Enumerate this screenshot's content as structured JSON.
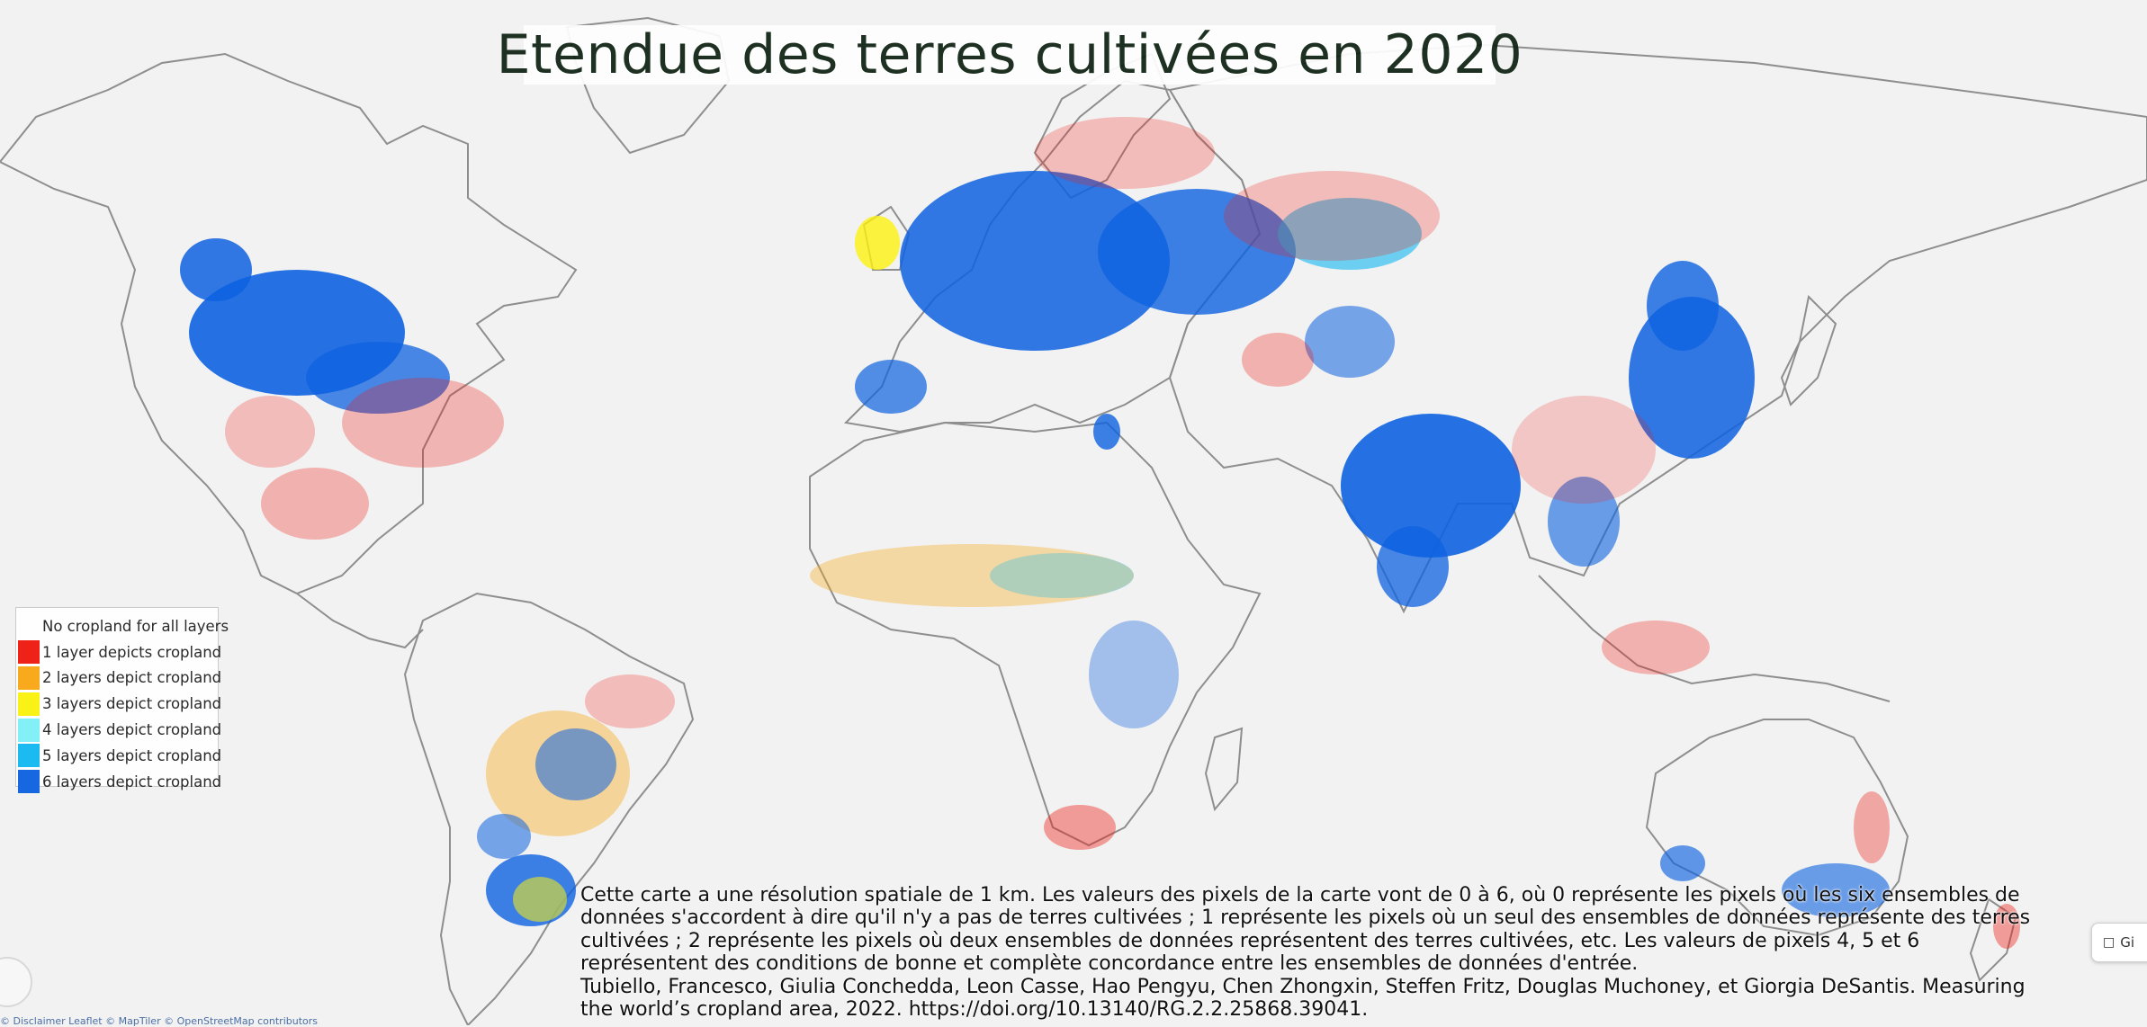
{
  "title": "Etendue des terres cultivées en 2020",
  "legend": [
    {
      "label": "No cropland for all layers",
      "color": "#ffffff"
    },
    {
      "label": "1 layer depicts cropland",
      "color": "#ee1a10"
    },
    {
      "label": "2 layers depict cropland",
      "color": "#f9a814"
    },
    {
      "label": "3 layers depict cropland",
      "color": "#fbf10e"
    },
    {
      "label": "4 layers depict cropland",
      "color": "#7ff0f8"
    },
    {
      "label": "5 layers depict cropland",
      "color": "#13b8f0"
    },
    {
      "label": "6 layers depict cropland",
      "color": "#0e62e0"
    }
  ],
  "caption": {
    "description": "Cette carte a une résolution spatiale de 1 km. Les valeurs des pixels de la carte vont de 0 à 6, où 0 représente les pixels où les six ensembles de données s'accordent à dire qu'il n'y a pas de terres cultivées ; 1 représente les pixels où un seul des ensembles de données représente des terres cultivées ; 2 représente les pixels où deux ensembles de données représentent des terres cultivées, etc. Les valeurs de pixels 4, 5 et 6 représentent des conditions de bonne et complète concordance entre les ensembles de données d'entrée.",
    "citation": "Tubiello, Francesco, Giulia Conchedda, Leon Casse, Hao Pengyu, Chen Zhongxin, Steffen Fritz, Douglas Muchoney, et Giorgia DeSantis. Measuring the world’s cropland area, 2022. https://doi.org/10.13140/RG.2.2.25868.39041."
  },
  "attribution": "© Disclaimer   Leaflet   © MapTiler © OpenStreetMap contributors",
  "feedback_label": "Gi",
  "colors": {
    "land": "#f2f2f2",
    "border": "#9a9a9a",
    "title_text": "#0b2010"
  }
}
